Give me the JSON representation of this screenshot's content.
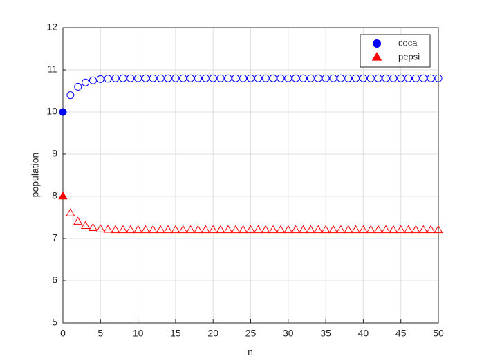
{
  "chart_data": {
    "type": "scatter",
    "x_label": "n",
    "y_label": "population",
    "x": [
      0,
      1,
      2,
      3,
      4,
      5,
      6,
      7,
      8,
      9,
      10,
      11,
      12,
      13,
      14,
      15,
      16,
      17,
      18,
      19,
      20,
      21,
      22,
      23,
      24,
      25,
      26,
      27,
      28,
      29,
      30,
      31,
      32,
      33,
      34,
      35,
      36,
      37,
      38,
      39,
      40,
      41,
      42,
      43,
      44,
      45,
      46,
      47,
      48,
      49,
      50
    ],
    "series": [
      {
        "name": "coca",
        "color": "#0000ff",
        "marker": "circle",
        "initial_filled": true,
        "values": [
          10,
          10.4,
          10.6,
          10.7,
          10.75,
          10.78,
          10.79,
          10.8,
          10.8,
          10.8,
          10.8,
          10.8,
          10.8,
          10.8,
          10.8,
          10.8,
          10.8,
          10.8,
          10.8,
          10.8,
          10.8,
          10.8,
          10.8,
          10.8,
          10.8,
          10.8,
          10.8,
          10.8,
          10.8,
          10.8,
          10.8,
          10.8,
          10.8,
          10.8,
          10.8,
          10.8,
          10.8,
          10.8,
          10.8,
          10.8,
          10.8,
          10.8,
          10.8,
          10.8,
          10.8,
          10.8,
          10.8,
          10.8,
          10.8,
          10.8,
          10.8
        ]
      },
      {
        "name": "pepsi",
        "color": "#ff0000",
        "marker": "triangle",
        "initial_filled": true,
        "values": [
          8,
          7.6,
          7.4,
          7.3,
          7.25,
          7.22,
          7.21,
          7.2,
          7.2,
          7.2,
          7.2,
          7.2,
          7.2,
          7.2,
          7.2,
          7.2,
          7.2,
          7.2,
          7.2,
          7.2,
          7.2,
          7.2,
          7.2,
          7.2,
          7.2,
          7.2,
          7.2,
          7.2,
          7.2,
          7.2,
          7.2,
          7.2,
          7.2,
          7.2,
          7.2,
          7.2,
          7.2,
          7.2,
          7.2,
          7.2,
          7.2,
          7.2,
          7.2,
          7.2,
          7.2,
          7.2,
          7.2,
          7.2,
          7.2,
          7.2,
          7.2
        ]
      }
    ],
    "xlim": [
      0,
      50
    ],
    "xticks": [
      0,
      5,
      10,
      15,
      20,
      25,
      30,
      35,
      40,
      45,
      50
    ],
    "ylim": [
      5,
      12
    ],
    "yticks": [
      5,
      6,
      7,
      8,
      9,
      10,
      11,
      12
    ],
    "grid": true,
    "legend": "upper-right"
  }
}
